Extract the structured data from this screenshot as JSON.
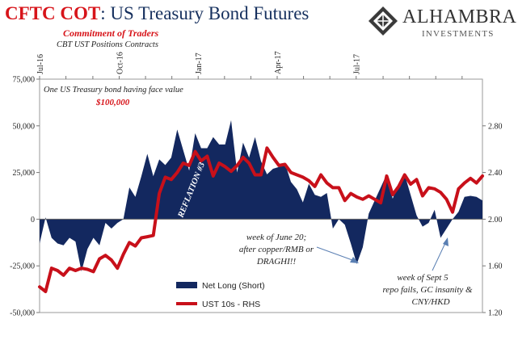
{
  "header": {
    "title_part1": "CFTC COT",
    "title_part2": ": US Treasury Bond Futures",
    "subtitle1": "Commitment of Traders",
    "subtitle2": "CBT UST Positions Contracts"
  },
  "brand": {
    "name": "ALHAMBRA",
    "sub": "INVESTMENTS"
  },
  "colors": {
    "net_long": "#13285f",
    "ust10s": "#c8101a",
    "title_red": "#d7141a",
    "annotation_red": "#d7141a"
  },
  "chart_data": {
    "type": "area",
    "x_tick_labels": [
      "Jul-16",
      "Oct-16",
      "Jan-17",
      "Apr-17",
      "Jul-17"
    ],
    "y_left": {
      "range": [
        -50000,
        75000
      ],
      "ticks": [
        -50000,
        -25000,
        0,
        25000,
        50000,
        75000
      ],
      "tick_labels": [
        "-50,000",
        "-25,000",
        "0",
        "25,000",
        "50,000",
        "75,000"
      ]
    },
    "y_right": {
      "range": [
        1.2,
        3.2
      ],
      "ticks": [
        1.2,
        1.6,
        2.0,
        2.4,
        2.8
      ],
      "tick_labels": [
        "1.20",
        "1.60",
        "2.00",
        "2.40",
        "2.80"
      ]
    },
    "grid": false,
    "legend_position": "bottom-left",
    "series": [
      {
        "name": "Net Long (Short)",
        "axis": "left",
        "kind": "area",
        "x_week": [
          0,
          1,
          2,
          3,
          4,
          5,
          6,
          7,
          8,
          9,
          10,
          11,
          12,
          13,
          14,
          15,
          16,
          17,
          18,
          19,
          20,
          21,
          22,
          23,
          24,
          25,
          26,
          27,
          28,
          29,
          30,
          31,
          32,
          33,
          34,
          35,
          36,
          37,
          38,
          39,
          40,
          41,
          42,
          43,
          44,
          45,
          46,
          47,
          48,
          49,
          50,
          51,
          52,
          53,
          54,
          55,
          56,
          57,
          58,
          59,
          60,
          61,
          62,
          63,
          64,
          65,
          66,
          67,
          68,
          69,
          70,
          71,
          72,
          73,
          74
        ],
        "values": [
          -13000,
          1000,
          -10000,
          -13000,
          -14000,
          -10000,
          -12000,
          -28000,
          -16000,
          -10000,
          -14000,
          -2000,
          -5000,
          -2000,
          0,
          17000,
          12000,
          23000,
          35000,
          23000,
          32000,
          29000,
          33000,
          48000,
          37000,
          26000,
          46000,
          38000,
          38000,
          44000,
          40000,
          40000,
          53000,
          25000,
          41000,
          33000,
          44000,
          31000,
          24000,
          27000,
          28000,
          30000,
          20000,
          16000,
          9000,
          19000,
          13000,
          12000,
          14000,
          -5000,
          0,
          -3000,
          -13000,
          -24000,
          -15000,
          3000,
          10000,
          17000,
          24000,
          11000,
          19000,
          24000,
          13000,
          2000,
          -4000,
          -2000,
          5000,
          -10000,
          -5000,
          0,
          4000,
          12000,
          12500,
          12000,
          10000
        ]
      },
      {
        "name": "UST 10s - RHS",
        "axis": "right",
        "kind": "line",
        "x_week": [
          0,
          1,
          2,
          3,
          4,
          5,
          6,
          7,
          8,
          9,
          10,
          11,
          12,
          13,
          14,
          15,
          16,
          17,
          18,
          19,
          20,
          21,
          22,
          23,
          24,
          25,
          26,
          27,
          28,
          29,
          30,
          31,
          32,
          33,
          34,
          35,
          36,
          37,
          38,
          39,
          40,
          41,
          42,
          43,
          44,
          45,
          46,
          47,
          48,
          49,
          50,
          51,
          52,
          53,
          54,
          55,
          56,
          57,
          58,
          59,
          60,
          61,
          62,
          63,
          64,
          65,
          66,
          67,
          68,
          69,
          70,
          71,
          72,
          73,
          74
        ],
        "values": [
          1.42,
          1.38,
          1.58,
          1.56,
          1.52,
          1.58,
          1.56,
          1.58,
          1.57,
          1.55,
          1.66,
          1.69,
          1.65,
          1.58,
          1.7,
          1.8,
          1.77,
          1.84,
          1.85,
          1.86,
          2.22,
          2.36,
          2.34,
          2.4,
          2.48,
          2.46,
          2.58,
          2.5,
          2.54,
          2.37,
          2.48,
          2.45,
          2.41,
          2.46,
          2.53,
          2.48,
          2.38,
          2.38,
          2.61,
          2.53,
          2.46,
          2.47,
          2.4,
          2.38,
          2.36,
          2.33,
          2.28,
          2.38,
          2.31,
          2.27,
          2.27,
          2.16,
          2.22,
          2.19,
          2.17,
          2.2,
          2.17,
          2.14,
          2.37,
          2.21,
          2.28,
          2.38,
          2.3,
          2.34,
          2.2,
          2.27,
          2.26,
          2.23,
          2.17,
          2.06,
          2.26,
          2.31,
          2.35,
          2.31,
          2.37
        ]
      }
    ],
    "annotations": {
      "face_value_line1": "One US Treasury bond having face value",
      "face_value_line2": "$100,000",
      "reflation": "REFLATION #3",
      "june_line1": "week of June 20;",
      "june_line2": "after copper/RMB or",
      "june_line3": "DRAGHI!!",
      "sept_line1": "week of Sept 5",
      "sept_line2": "repo fails, GC insanity &",
      "sept_line3": "CNY/HKD"
    }
  }
}
